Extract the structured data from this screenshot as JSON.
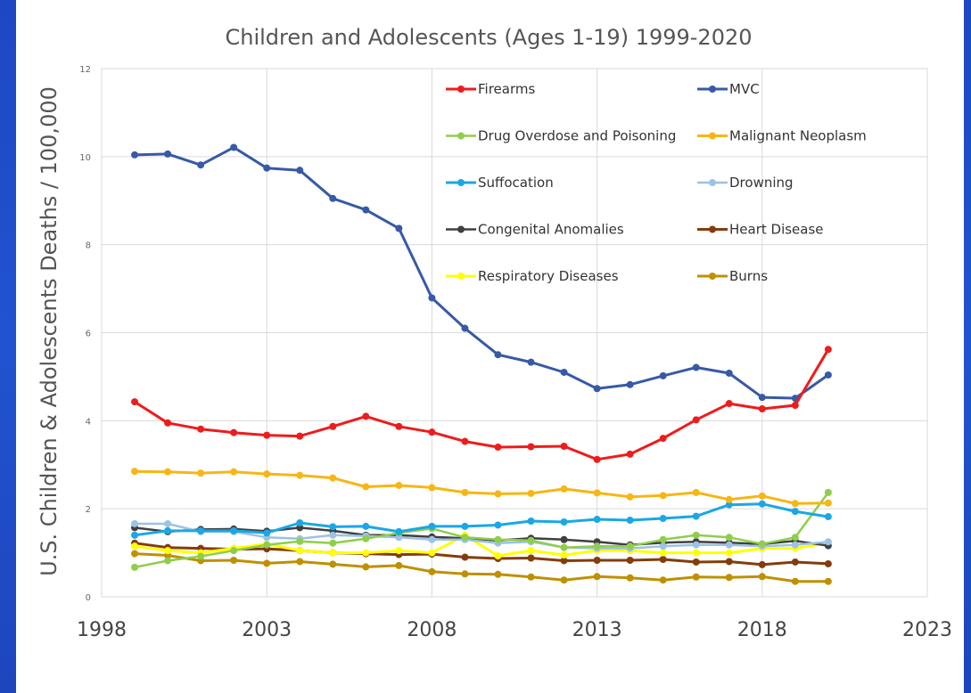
{
  "chart_data": {
    "type": "line",
    "title": "Children and Adolescents (Ages 1-19) 1999-2020",
    "xlabel": "",
    "ylabel": "U.S. Children & Adolescents  Deaths / 100,000",
    "xlim": [
      1998,
      2023
    ],
    "ylim": [
      0,
      12
    ],
    "x_ticks": [
      1998,
      2003,
      2008,
      2013,
      2018,
      2023
    ],
    "y_ticks": [
      0,
      2,
      4,
      6,
      8,
      10,
      12
    ],
    "grid": "horizontal and vertical",
    "legend_placement": "top-right",
    "x": [
      1999,
      2000,
      2001,
      2002,
      2003,
      2004,
      2005,
      2006,
      2007,
      2008,
      2009,
      2010,
      2011,
      2012,
      2013,
      2014,
      2015,
      2016,
      2017,
      2018,
      2019,
      2020
    ],
    "series": [
      {
        "name": "Firearms",
        "color": "#ee1c1c",
        "width": 3,
        "values": [
          4.43,
          3.95,
          3.81,
          3.73,
          3.67,
          3.65,
          3.87,
          4.1,
          3.87,
          3.74,
          3.53,
          3.4,
          3.41,
          3.42,
          3.12,
          3.24,
          3.6,
          4.02,
          4.39,
          4.27,
          4.35,
          5.62
        ]
      },
      {
        "name": "MVC",
        "color": "#3759a8",
        "width": 3,
        "values": [
          10.04,
          10.06,
          9.81,
          10.21,
          9.74,
          9.69,
          9.05,
          8.79,
          8.37,
          6.79,
          6.1,
          5.5,
          5.33,
          5.1,
          4.73,
          4.82,
          5.02,
          5.21,
          5.08,
          4.53,
          4.51,
          5.04
        ]
      },
      {
        "name": "Drug Overdose and Poisoning",
        "color": "#8fce4a",
        "width": 2.5,
        "values": [
          0.67,
          0.82,
          0.92,
          1.05,
          1.18,
          1.26,
          1.22,
          1.32,
          1.45,
          1.55,
          1.35,
          1.3,
          1.28,
          1.12,
          1.15,
          1.15,
          1.3,
          1.4,
          1.35,
          1.2,
          1.35,
          2.37
        ]
      },
      {
        "name": "Malignant Neoplasm",
        "color": "#f7b614",
        "width": 3,
        "values": [
          2.85,
          2.84,
          2.81,
          2.84,
          2.79,
          2.76,
          2.7,
          2.5,
          2.53,
          2.48,
          2.37,
          2.34,
          2.35,
          2.45,
          2.36,
          2.27,
          2.3,
          2.37,
          2.21,
          2.29,
          2.12,
          2.13
        ]
      },
      {
        "name": "Suffocation",
        "color": "#1aa7e6",
        "width": 3,
        "values": [
          1.4,
          1.5,
          1.5,
          1.5,
          1.45,
          1.68,
          1.59,
          1.6,
          1.48,
          1.6,
          1.6,
          1.63,
          1.72,
          1.7,
          1.76,
          1.74,
          1.78,
          1.83,
          2.09,
          2.11,
          1.94,
          1.82
        ]
      },
      {
        "name": "Drowning",
        "color": "#9cc2e5",
        "width": 2.5,
        "values": [
          1.66,
          1.66,
          1.48,
          1.48,
          1.35,
          1.32,
          1.4,
          1.38,
          1.35,
          1.3,
          1.3,
          1.22,
          1.25,
          1.12,
          1.1,
          1.1,
          1.15,
          1.18,
          1.18,
          1.15,
          1.18,
          1.25
        ]
      },
      {
        "name": "Congenital Anomalies",
        "color": "#404040",
        "width": 2.5,
        "values": [
          1.57,
          1.48,
          1.53,
          1.54,
          1.49,
          1.57,
          1.5,
          1.4,
          1.4,
          1.36,
          1.33,
          1.28,
          1.33,
          1.3,
          1.25,
          1.18,
          1.23,
          1.25,
          1.23,
          1.2,
          1.27,
          1.16
        ]
      },
      {
        "name": "Heart Disease",
        "color": "#843c0c",
        "width": 3,
        "values": [
          1.22,
          1.12,
          1.1,
          1.08,
          1.09,
          1.05,
          1.0,
          0.98,
          0.96,
          0.97,
          0.9,
          0.87,
          0.88,
          0.82,
          0.83,
          0.83,
          0.85,
          0.79,
          0.8,
          0.73,
          0.79,
          0.75
        ]
      },
      {
        "name": "Respiratory Diseases",
        "color": "#ffff00",
        "width": 3,
        "values": [
          1.15,
          1.05,
          1.0,
          1.1,
          1.2,
          1.05,
          1.0,
          1.0,
          1.05,
          1.0,
          1.4,
          0.93,
          1.05,
          0.95,
          1.05,
          1.05,
          1.0,
          1.0,
          1.0,
          1.1,
          1.1,
          1.22
        ]
      },
      {
        "name": "Burns",
        "color": "#bf9000",
        "width": 3,
        "values": [
          0.98,
          0.94,
          0.82,
          0.83,
          0.76,
          0.8,
          0.74,
          0.68,
          0.71,
          0.57,
          0.52,
          0.51,
          0.45,
          0.38,
          0.46,
          0.43,
          0.38,
          0.45,
          0.44,
          0.46,
          0.35,
          0.35
        ]
      }
    ]
  }
}
